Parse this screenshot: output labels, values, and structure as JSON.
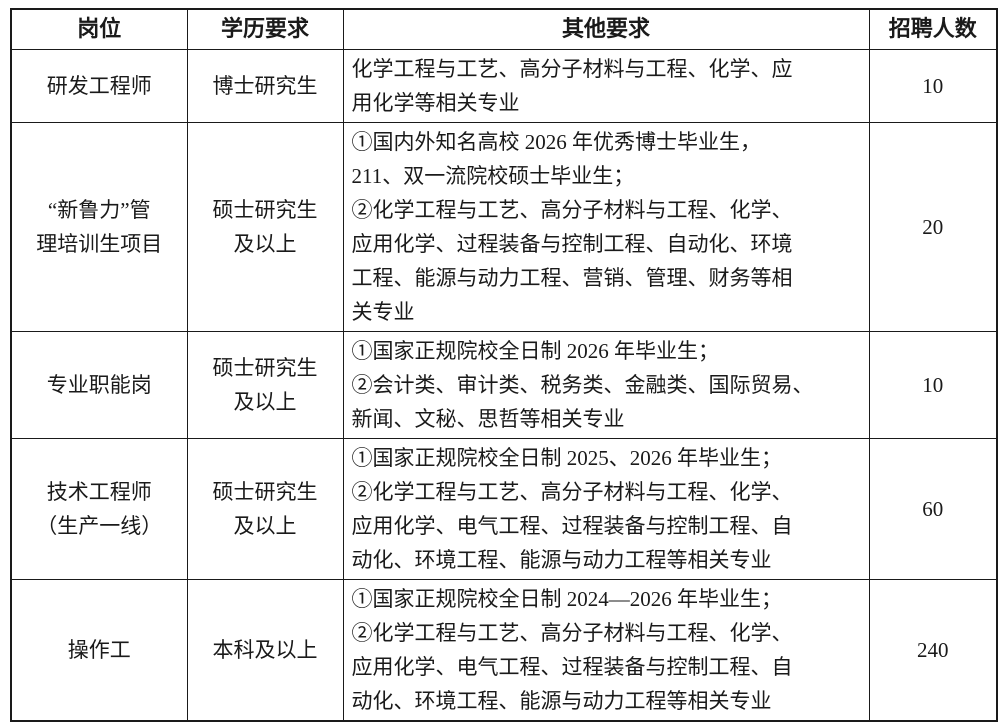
{
  "table": {
    "headers": {
      "position": "岗位",
      "education": "学历要求",
      "other": "其他要求",
      "count": "招聘人数"
    },
    "rows": [
      {
        "position": "研发工程师",
        "education": "博士研究生",
        "other": "化学工程与工艺、高分子材料与工程、化学、应\n用化学等相关专业",
        "count": "10"
      },
      {
        "position": "“新鲁力”管\n理培训生项目",
        "education": "硕士研究生\n及以上",
        "other": "①国内外知名高校 2026 年优秀博士毕业生，\n211、双一流院校硕士毕业生；\n②化学工程与工艺、高分子材料与工程、化学、\n应用化学、过程装备与控制工程、自动化、环境\n工程、能源与动力工程、营销、管理、财务等相\n关专业",
        "count": "20"
      },
      {
        "position": "专业职能岗",
        "education": "硕士研究生\n及以上",
        "other": "①国家正规院校全日制 2026 年毕业生；\n②会计类、审计类、税务类、金融类、国际贸易、\n新闻、文秘、思哲等相关专业",
        "count": "10"
      },
      {
        "position": "技术工程师\n（生产一线）",
        "education": "硕士研究生\n及以上",
        "other": "①国家正规院校全日制 2025、2026 年毕业生；\n②化学工程与工艺、高分子材料与工程、化学、\n应用化学、电气工程、过程装备与控制工程、自\n动化、环境工程、能源与动力工程等相关专业",
        "count": "60"
      },
      {
        "position": "操作工",
        "education": "本科及以上",
        "other": "①国家正规院校全日制 2024—2026 年毕业生；\n②化学工程与工艺、高分子材料与工程、化学、\n应用化学、电气工程、过程装备与控制工程、自\n动化、环境工程、能源与动力工程等相关专业",
        "count": "240"
      }
    ]
  }
}
